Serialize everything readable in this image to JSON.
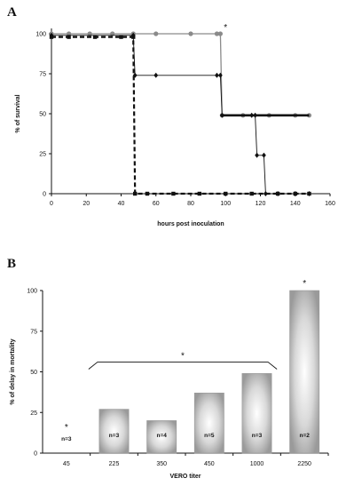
{
  "chart_data": [
    {
      "panel": "A",
      "type": "line",
      "title": "",
      "xlabel": "hours post inoculation",
      "ylabel": "% of survival",
      "xlim": [
        0,
        160
      ],
      "ylim": [
        0,
        100
      ],
      "xticks": [
        0,
        20,
        40,
        60,
        80,
        100,
        120,
        140,
        160
      ],
      "yticks": [
        0,
        25,
        50,
        75,
        100
      ],
      "grid": false,
      "series": [
        {
          "style": "solid-gray",
          "color": "#8a8a8a",
          "points": [
            [
              0,
              100
            ],
            [
              10,
              100
            ],
            [
              22,
              100
            ],
            [
              35,
              100
            ],
            [
              47,
              100
            ],
            [
              60,
              100
            ],
            [
              80,
              100
            ],
            [
              95,
              100
            ],
            [
              97,
              100
            ],
            [
              98,
              49
            ],
            [
              110,
              49
            ],
            [
              125,
              49
            ],
            [
              140,
              49
            ],
            [
              148,
              49
            ]
          ],
          "step": true
        },
        {
          "style": "solid-thin-black",
          "color": "#111111",
          "points": [
            [
              0,
              99
            ],
            [
              47,
              99
            ],
            [
              48,
              74
            ],
            [
              60,
              74
            ],
            [
              95,
              74
            ],
            [
              97,
              74
            ],
            [
              98,
              49
            ],
            [
              115,
              49
            ],
            [
              117,
              49
            ],
            [
              118,
              24
            ],
            [
              122,
              24
            ],
            [
              123,
              0
            ],
            [
              130,
              0
            ],
            [
              140,
              0
            ],
            [
              148,
              0
            ]
          ],
          "step": true
        },
        {
          "style": "solid-thick-black",
          "color": "#111111",
          "points": [
            [
              97,
              49
            ],
            [
              148,
              49
            ]
          ],
          "step": false
        },
        {
          "style": "dashed-black",
          "color": "#111111",
          "points": [
            [
              0,
              98
            ],
            [
              10,
              98
            ],
            [
              25,
              98
            ],
            [
              40,
              98
            ],
            [
              47,
              98
            ],
            [
              48,
              0
            ],
            [
              55,
              0
            ],
            [
              70,
              0
            ],
            [
              85,
              0
            ],
            [
              100,
              0
            ],
            [
              115,
              0
            ],
            [
              130,
              0
            ],
            [
              140,
              0
            ],
            [
              148,
              0
            ]
          ],
          "step": true
        }
      ],
      "annotations": [
        {
          "text": "*",
          "x": 100,
          "y": 101
        }
      ]
    },
    {
      "panel": "B",
      "type": "bar",
      "title": "",
      "xlabel": "VERO titer",
      "ylabel": "% of delay in mortality",
      "categories": [
        "45",
        "225",
        "350",
        "450",
        "1000",
        "2250"
      ],
      "values": [
        0,
        27,
        20,
        37,
        49,
        100
      ],
      "n_labels": [
        "n=3",
        "n=3",
        "n=4",
        "n=5",
        "n=3",
        "n=2"
      ],
      "ylim": [
        0,
        100
      ],
      "yticks": [
        0,
        25,
        50,
        75,
        100
      ],
      "grid": false,
      "bar_color": "#a8a8a8",
      "annotations": [
        {
          "text": "*",
          "category": "45"
        },
        {
          "text": "*",
          "bracket": [
            "225",
            "1000"
          ]
        },
        {
          "text": "*",
          "category": "2250"
        }
      ]
    }
  ]
}
